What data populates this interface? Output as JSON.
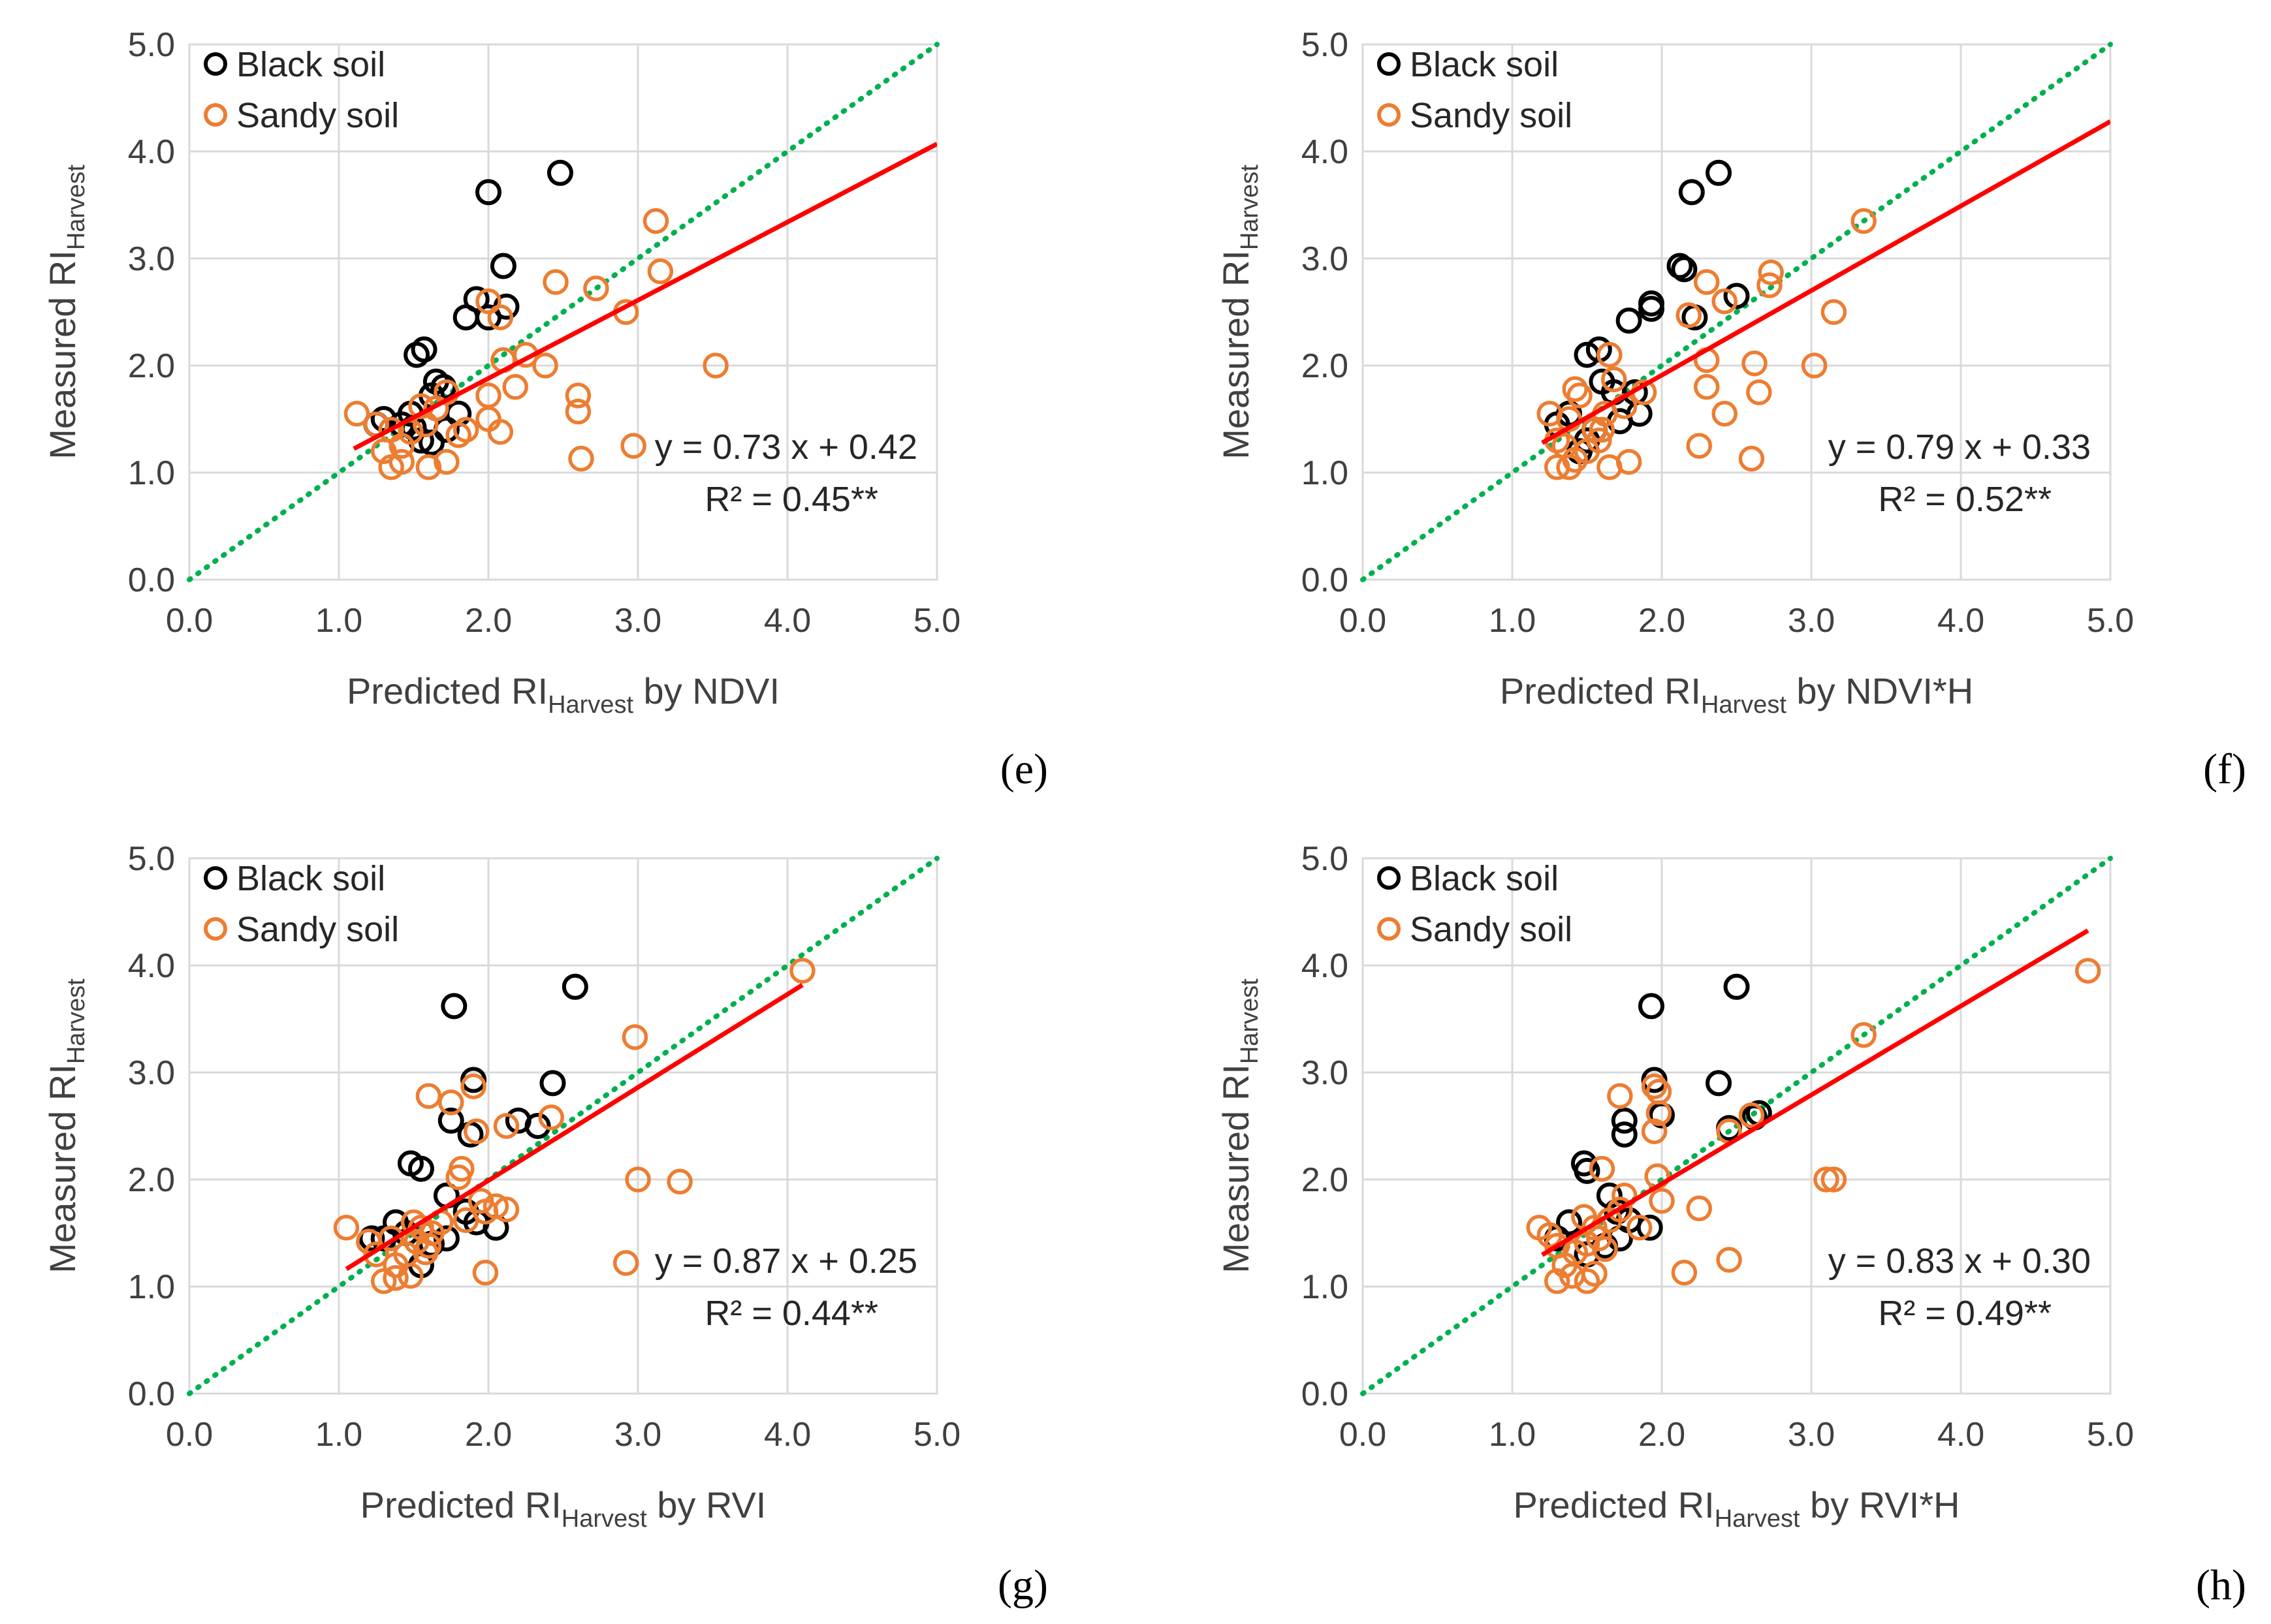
{
  "legend_marker_colors": {
    "black_soil": "#000000",
    "sandy_soil": "#ed7d31"
  },
  "line_colors": {
    "one_to_one": "#00b050",
    "regression": "#ff0000"
  },
  "axis_ticks": [
    "0.0",
    "1.0",
    "2.0",
    "3.0",
    "4.0",
    "5.0"
  ],
  "chart_data": [
    {
      "type": "scatter",
      "panel_label": "(e)",
      "ylabel": {
        "main": "Measured RI",
        "sub": "Harvest",
        "suffix": ""
      },
      "xlabel": {
        "main": "Predicted RI",
        "sub": "Harvest",
        "suffix": " by NDVI"
      },
      "xlim": [
        0,
        5
      ],
      "ylim": [
        0,
        5
      ],
      "grid": true,
      "legend_position": "top-left",
      "legend": [
        "Black soil",
        "Sandy soil"
      ],
      "equation": "y = 0.73 x + 0.42",
      "r2": "R² = 0.45**",
      "fit": {
        "slope": 0.73,
        "intercept": 0.42,
        "x_range": [
          1.1,
          5.0
        ]
      },
      "one_to_one": true,
      "series": [
        {
          "name": "Black soil",
          "points": [
            [
              2.0,
              3.62
            ],
            [
              2.48,
              3.8
            ],
            [
              2.1,
              2.93
            ],
            [
              2.0,
              2.45
            ],
            [
              2.12,
              2.55
            ],
            [
              1.92,
              2.62
            ],
            [
              1.85,
              2.45
            ],
            [
              1.52,
              2.1
            ],
            [
              1.57,
              2.15
            ],
            [
              1.65,
              1.85
            ],
            [
              1.7,
              1.8
            ],
            [
              1.62,
              1.72
            ],
            [
              1.8,
              1.55
            ],
            [
              1.72,
              1.4
            ],
            [
              1.62,
              1.28
            ],
            [
              1.48,
              1.55
            ],
            [
              1.42,
              1.45
            ],
            [
              1.3,
              1.5
            ],
            [
              1.25,
              1.45
            ],
            [
              1.55,
              1.3
            ],
            [
              1.5,
              1.42
            ]
          ]
        },
        {
          "name": "Sandy soil",
          "points": [
            [
              3.12,
              3.35
            ],
            [
              3.15,
              2.88
            ],
            [
              2.45,
              2.78
            ],
            [
              2.72,
              2.72
            ],
            [
              2.92,
              2.5
            ],
            [
              2.0,
              2.6
            ],
            [
              2.08,
              2.45
            ],
            [
              2.1,
              2.05
            ],
            [
              2.25,
              2.1
            ],
            [
              2.38,
              2.0
            ],
            [
              3.52,
              2.0
            ],
            [
              2.6,
              1.72
            ],
            [
              2.6,
              1.57
            ],
            [
              2.97,
              1.25
            ],
            [
              2.62,
              1.13
            ],
            [
              2.18,
              1.8
            ],
            [
              2.0,
              1.72
            ],
            [
              2.0,
              1.5
            ],
            [
              2.08,
              1.38
            ],
            [
              1.85,
              1.4
            ],
            [
              1.8,
              1.35
            ],
            [
              1.72,
              1.75
            ],
            [
              1.65,
              1.6
            ],
            [
              1.55,
              1.62
            ],
            [
              1.58,
              1.45
            ],
            [
              1.48,
              1.38
            ],
            [
              1.42,
              1.25
            ],
            [
              1.35,
              1.4
            ],
            [
              1.3,
              1.2
            ],
            [
              1.35,
              1.05
            ],
            [
              1.42,
              1.1
            ],
            [
              1.6,
              1.05
            ],
            [
              1.72,
              1.1
            ],
            [
              1.12,
              1.55
            ],
            [
              1.25,
              1.45
            ]
          ]
        }
      ]
    },
    {
      "type": "scatter",
      "panel_label": "(f)",
      "ylabel": {
        "main": "Measured RI",
        "sub": "Harvest",
        "suffix": ""
      },
      "xlabel": {
        "main": "Predicted RI",
        "sub": "Harvest",
        "suffix": " by NDVI*H"
      },
      "xlim": [
        0,
        5
      ],
      "ylim": [
        0,
        5
      ],
      "grid": true,
      "legend_position": "top-left",
      "legend": [
        "Black soil",
        "Sandy soil"
      ],
      "equation": "y = 0.79 x + 0.33",
      "r2": "R² = 0.52**",
      "fit": {
        "slope": 0.79,
        "intercept": 0.33,
        "x_range": [
          1.2,
          5.0
        ]
      },
      "one_to_one": true,
      "series": [
        {
          "name": "Black soil",
          "points": [
            [
              2.2,
              3.62
            ],
            [
              2.38,
              3.8
            ],
            [
              2.12,
              2.93
            ],
            [
              2.15,
              2.9
            ],
            [
              1.93,
              2.58
            ],
            [
              1.93,
              2.53
            ],
            [
              2.22,
              2.45
            ],
            [
              1.78,
              2.42
            ],
            [
              2.5,
              2.65
            ],
            [
              1.5,
              2.1
            ],
            [
              1.58,
              2.15
            ],
            [
              1.6,
              1.85
            ],
            [
              1.68,
              1.75
            ],
            [
              1.82,
              1.75
            ],
            [
              1.85,
              1.55
            ],
            [
              1.72,
              1.48
            ],
            [
              1.55,
              1.4
            ],
            [
              1.5,
              1.3
            ],
            [
              1.38,
              1.55
            ],
            [
              1.3,
              1.45
            ],
            [
              1.45,
              1.2
            ]
          ]
        },
        {
          "name": "Sandy soil",
          "points": [
            [
              3.35,
              3.35
            ],
            [
              2.73,
              2.87
            ],
            [
              2.72,
              2.75
            ],
            [
              2.3,
              2.78
            ],
            [
              2.42,
              2.6
            ],
            [
              2.18,
              2.47
            ],
            [
              3.15,
              2.5
            ],
            [
              2.3,
              2.05
            ],
            [
              2.3,
              1.8
            ],
            [
              2.42,
              1.55
            ],
            [
              2.62,
              2.02
            ],
            [
              3.02,
              2.0
            ],
            [
              2.65,
              1.75
            ],
            [
              2.25,
              1.25
            ],
            [
              2.6,
              1.13
            ],
            [
              1.65,
              2.1
            ],
            [
              1.68,
              1.87
            ],
            [
              1.88,
              1.75
            ],
            [
              1.75,
              1.62
            ],
            [
              1.62,
              1.55
            ],
            [
              1.42,
              1.78
            ],
            [
              1.45,
              1.72
            ],
            [
              1.55,
              1.4
            ],
            [
              1.58,
              1.3
            ],
            [
              1.5,
              1.2
            ],
            [
              1.35,
              1.25
            ],
            [
              1.3,
              1.05
            ],
            [
              1.38,
              1.05
            ],
            [
              1.42,
              1.12
            ],
            [
              1.65,
              1.05
            ],
            [
              1.78,
              1.1
            ],
            [
              1.25,
              1.55
            ],
            [
              1.3,
              1.3
            ],
            [
              1.38,
              1.5
            ],
            [
              1.6,
              1.4
            ]
          ]
        }
      ]
    },
    {
      "type": "scatter",
      "panel_label": "(g)",
      "ylabel": {
        "main": "Measured RI",
        "sub": "Harvest",
        "suffix": ""
      },
      "xlabel": {
        "main": "Predicted RI",
        "sub": "Harvest",
        "suffix": " by RVI"
      },
      "xlim": [
        0,
        5
      ],
      "ylim": [
        0,
        5
      ],
      "grid": true,
      "legend_position": "top-left",
      "legend": [
        "Black soil",
        "Sandy soil"
      ],
      "equation": "y = 0.87 x + 0.25",
      "r2": "R² = 0.44**",
      "fit": {
        "slope": 0.87,
        "intercept": 0.25,
        "x_range": [
          1.05,
          4.1
        ]
      },
      "one_to_one": true,
      "series": [
        {
          "name": "Black soil",
          "points": [
            [
              1.77,
              3.62
            ],
            [
              2.58,
              3.8
            ],
            [
              1.9,
              2.93
            ],
            [
              2.43,
              2.9
            ],
            [
              2.2,
              2.55
            ],
            [
              2.33,
              2.5
            ],
            [
              1.75,
              2.55
            ],
            [
              1.88,
              2.42
            ],
            [
              1.48,
              2.15
            ],
            [
              1.55,
              2.1
            ],
            [
              1.72,
              1.85
            ],
            [
              1.85,
              1.7
            ],
            [
              1.92,
              1.6
            ],
            [
              2.05,
              1.55
            ],
            [
              1.72,
              1.45
            ],
            [
              1.62,
              1.4
            ],
            [
              1.45,
              1.5
            ],
            [
              1.38,
              1.6
            ],
            [
              1.3,
              1.45
            ],
            [
              1.55,
              1.2
            ],
            [
              1.22,
              1.45
            ]
          ]
        },
        {
          "name": "Sandy soil",
          "points": [
            [
              4.1,
              3.95
            ],
            [
              2.98,
              3.33
            ],
            [
              1.9,
              2.87
            ],
            [
              1.6,
              2.78
            ],
            [
              1.75,
              2.72
            ],
            [
              2.42,
              2.58
            ],
            [
              2.12,
              2.5
            ],
            [
              1.92,
              2.45
            ],
            [
              1.82,
              2.1
            ],
            [
              1.8,
              2.02
            ],
            [
              3.0,
              2.0
            ],
            [
              3.28,
              1.98
            ],
            [
              2.12,
              1.72
            ],
            [
              2.05,
              1.75
            ],
            [
              1.98,
              1.7
            ],
            [
              1.95,
              1.8
            ],
            [
              1.85,
              1.62
            ],
            [
              1.68,
              1.6
            ],
            [
              1.62,
              1.5
            ],
            [
              1.55,
              1.55
            ],
            [
              1.52,
              1.42
            ],
            [
              1.6,
              1.38
            ],
            [
              1.45,
              1.3
            ],
            [
              1.38,
              1.2
            ],
            [
              1.3,
              1.05
            ],
            [
              1.38,
              1.08
            ],
            [
              1.48,
              1.1
            ],
            [
              1.98,
              1.13
            ],
            [
              2.92,
              1.22
            ],
            [
              1.05,
              1.55
            ],
            [
              1.2,
              1.42
            ],
            [
              1.25,
              1.3
            ],
            [
              1.35,
              1.45
            ],
            [
              1.58,
              1.32
            ],
            [
              1.5,
              1.6
            ]
          ]
        }
      ]
    },
    {
      "type": "scatter",
      "panel_label": "(h)",
      "ylabel": {
        "main": "Measured RI",
        "sub": "Harvest",
        "suffix": ""
      },
      "xlabel": {
        "main": "Predicted RI",
        "sub": "Harvest",
        "suffix": " by RVI*H"
      },
      "xlim": [
        0,
        5
      ],
      "ylim": [
        0,
        5
      ],
      "grid": true,
      "legend_position": "top-left",
      "legend": [
        "Black soil",
        "Sandy soil"
      ],
      "equation": "y = 0.83 x + 0.30",
      "r2": "R² = 0.49**",
      "fit": {
        "slope": 0.83,
        "intercept": 0.3,
        "x_range": [
          1.2,
          4.85
        ]
      },
      "one_to_one": true,
      "series": [
        {
          "name": "Black soil",
          "points": [
            [
              1.93,
              3.62
            ],
            [
              2.5,
              3.8
            ],
            [
              1.95,
              2.93
            ],
            [
              2.38,
              2.9
            ],
            [
              2.65,
              2.62
            ],
            [
              2.62,
              2.58
            ],
            [
              2.45,
              2.48
            ],
            [
              1.75,
              2.42
            ],
            [
              1.75,
              2.55
            ],
            [
              2.0,
              2.6
            ],
            [
              1.48,
              2.15
            ],
            [
              1.5,
              2.08
            ],
            [
              1.65,
              1.85
            ],
            [
              1.7,
              1.7
            ],
            [
              1.78,
              1.62
            ],
            [
              1.92,
              1.55
            ],
            [
              1.72,
              1.45
            ],
            [
              1.62,
              1.38
            ],
            [
              1.38,
              1.6
            ],
            [
              1.3,
              1.45
            ],
            [
              1.5,
              1.3
            ]
          ]
        },
        {
          "name": "Sandy soil",
          "points": [
            [
              4.85,
              3.95
            ],
            [
              3.35,
              3.35
            ],
            [
              1.95,
              2.87
            ],
            [
              1.98,
              2.82
            ],
            [
              1.72,
              2.78
            ],
            [
              1.98,
              2.62
            ],
            [
              2.6,
              2.6
            ],
            [
              2.45,
              2.45
            ],
            [
              1.95,
              2.45
            ],
            [
              1.6,
              2.1
            ],
            [
              1.97,
              2.03
            ],
            [
              3.1,
              2.0
            ],
            [
              3.15,
              2.0
            ],
            [
              2.0,
              1.8
            ],
            [
              1.75,
              1.85
            ],
            [
              1.72,
              1.72
            ],
            [
              2.25,
              1.73
            ],
            [
              1.85,
              1.55
            ],
            [
              1.65,
              1.62
            ],
            [
              1.55,
              1.55
            ],
            [
              1.5,
              1.4
            ],
            [
              1.58,
              1.45
            ],
            [
              1.42,
              1.32
            ],
            [
              1.35,
              1.2
            ],
            [
              1.3,
              1.05
            ],
            [
              1.4,
              1.1
            ],
            [
              1.5,
              1.05
            ],
            [
              1.55,
              1.12
            ],
            [
              2.15,
              1.13
            ],
            [
              2.45,
              1.25
            ],
            [
              1.18,
              1.55
            ],
            [
              1.3,
              1.38
            ],
            [
              1.25,
              1.48
            ],
            [
              1.62,
              1.35
            ],
            [
              1.48,
              1.65
            ]
          ]
        }
      ]
    }
  ]
}
